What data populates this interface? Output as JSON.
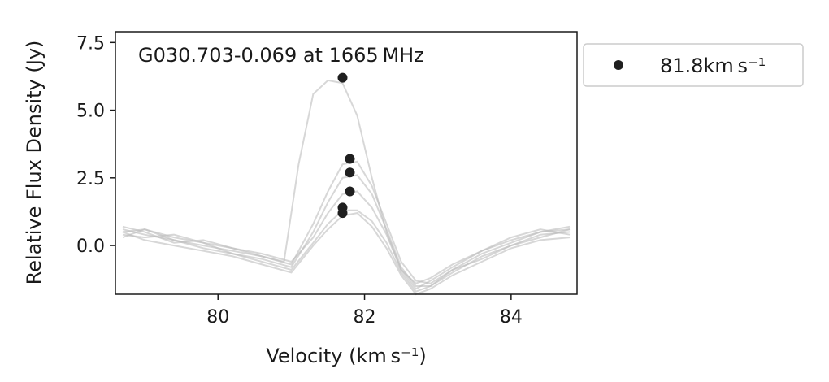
{
  "chart_data": {
    "type": "line",
    "title": "G030.703-0.069 at 1665 MHz",
    "xlabel": "Velocity (km s⁻¹)",
    "ylabel": "Relative Flux Density (Jy)",
    "xlim": [
      78.6,
      84.9
    ],
    "ylim": [
      -1.8,
      7.9
    ],
    "xticks": [
      80,
      82,
      84
    ],
    "yticks": [
      0.0,
      2.5,
      5.0,
      7.5
    ],
    "xtick_labels": [
      "80",
      "82",
      "84"
    ],
    "ytick_labels": [
      "0.0",
      "2.5",
      "5.0",
      "7.5"
    ],
    "grid": false,
    "legend_position": "outside-right",
    "legend": [
      {
        "label": "81.8km s⁻¹",
        "marker": "circle",
        "color": "#1f1f1f"
      }
    ],
    "line_color": "#bdbdbd",
    "series": [
      {
        "peak_v": 81.7,
        "peak": 6.2,
        "x": [
          78.7,
          79.0,
          79.4,
          79.8,
          80.2,
          80.6,
          80.9,
          81.1,
          81.3,
          81.5,
          81.7,
          81.9,
          82.1,
          82.3,
          82.5,
          82.7,
          82.9,
          83.2,
          83.6,
          84.0,
          84.4,
          84.8
        ],
        "y": [
          0.5,
          0.6,
          0.3,
          0.1,
          -0.1,
          -0.4,
          -0.6,
          3.0,
          5.6,
          6.1,
          6.0,
          4.8,
          2.5,
          0.5,
          -0.9,
          -1.4,
          -1.2,
          -0.7,
          -0.2,
          0.2,
          0.5,
          0.6
        ]
      },
      {
        "peak_v": 81.8,
        "peak": 3.2,
        "x": [
          78.7,
          79.0,
          79.4,
          79.8,
          80.2,
          80.6,
          81.0,
          81.3,
          81.5,
          81.7,
          81.9,
          82.1,
          82.3,
          82.5,
          82.7,
          82.9,
          83.2,
          83.6,
          84.0,
          84.4,
          84.8
        ],
        "y": [
          0.6,
          0.4,
          0.2,
          0.0,
          -0.2,
          -0.4,
          -0.7,
          0.8,
          2.0,
          3.0,
          3.1,
          2.2,
          0.8,
          -0.6,
          -1.3,
          -1.4,
          -0.9,
          -0.3,
          0.1,
          0.5,
          0.7
        ]
      },
      {
        "peak_v": 81.8,
        "peak": 2.7,
        "x": [
          78.7,
          79.0,
          79.4,
          79.8,
          80.2,
          80.6,
          81.0,
          81.3,
          81.5,
          81.7,
          81.9,
          82.1,
          82.3,
          82.5,
          82.7,
          82.9,
          83.2,
          83.6,
          84.0,
          84.4,
          84.8
        ],
        "y": [
          0.4,
          0.3,
          0.4,
          0.1,
          -0.3,
          -0.5,
          -0.8,
          0.5,
          1.6,
          2.5,
          2.6,
          1.9,
          0.6,
          -0.8,
          -1.5,
          -1.5,
          -1.0,
          -0.4,
          0.0,
          0.4,
          0.5
        ]
      },
      {
        "peak_v": 81.8,
        "peak": 2.0,
        "x": [
          78.7,
          79.0,
          79.4,
          79.8,
          80.2,
          80.6,
          81.0,
          81.3,
          81.5,
          81.7,
          81.9,
          82.1,
          82.3,
          82.5,
          82.7,
          82.9,
          83.2,
          83.6,
          84.0,
          84.4,
          84.8
        ],
        "y": [
          0.7,
          0.5,
          0.1,
          0.2,
          -0.1,
          -0.3,
          -0.6,
          0.3,
          1.2,
          1.9,
          2.0,
          1.4,
          0.4,
          -0.9,
          -1.6,
          -1.3,
          -0.8,
          -0.2,
          0.3,
          0.6,
          0.4
        ]
      },
      {
        "peak_v": 81.7,
        "peak": 1.4,
        "x": [
          78.7,
          79.0,
          79.4,
          79.8,
          80.2,
          80.6,
          81.0,
          81.3,
          81.5,
          81.7,
          81.9,
          82.1,
          82.3,
          82.5,
          82.7,
          82.9,
          83.2,
          83.6,
          84.0,
          84.4,
          84.8
        ],
        "y": [
          0.3,
          0.6,
          0.2,
          -0.1,
          -0.3,
          -0.6,
          -0.9,
          0.1,
          0.8,
          1.3,
          1.3,
          0.9,
          0.1,
          -1.0,
          -1.7,
          -1.5,
          -0.9,
          -0.5,
          0.0,
          0.3,
          0.6
        ]
      },
      {
        "peak_v": 81.7,
        "peak": 1.2,
        "x": [
          78.7,
          79.0,
          79.4,
          79.8,
          80.2,
          80.6,
          81.0,
          81.3,
          81.5,
          81.7,
          81.9,
          82.1,
          82.3,
          82.5,
          82.7,
          82.9,
          83.2,
          83.6,
          84.0,
          84.4,
          84.8
        ],
        "y": [
          0.5,
          0.2,
          0.0,
          -0.2,
          -0.4,
          -0.7,
          -1.0,
          0.0,
          0.6,
          1.1,
          1.2,
          0.7,
          -0.1,
          -1.1,
          -1.8,
          -1.6,
          -1.1,
          -0.6,
          -0.1,
          0.2,
          0.3
        ]
      }
    ]
  }
}
